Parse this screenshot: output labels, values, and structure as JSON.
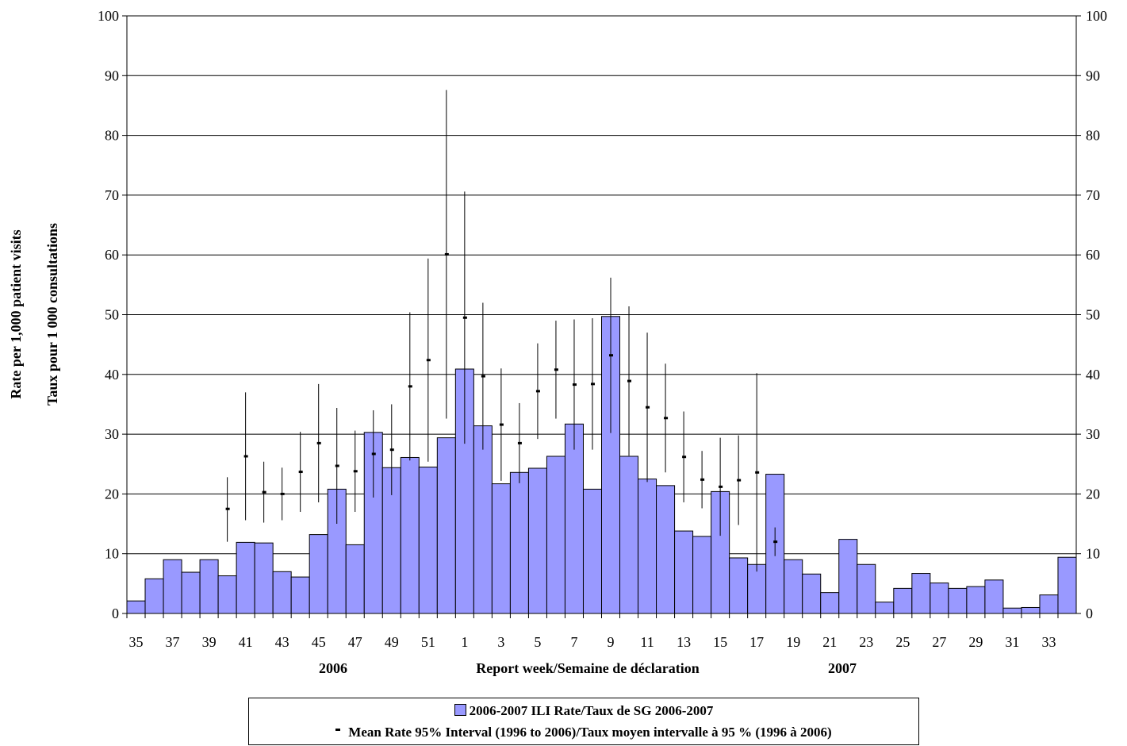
{
  "chart_data": {
    "type": "bar",
    "ylabel_en": "Rate per 1,000 patient visits",
    "ylabel_fr": "Taux pour 1 000 consultations",
    "xlabel": "Report week/Semaine de déclaration",
    "year_labels": [
      "2006",
      "2007"
    ],
    "ylim": [
      0,
      100
    ],
    "yticks": [
      "0",
      "10",
      "20",
      "30",
      "40",
      "50",
      "60",
      "70",
      "80",
      "90",
      "100"
    ],
    "grid": "horizontal",
    "legend_placement": "bottom",
    "colors": {
      "bar_fill": "#9999ff",
      "bar_edge": "#000000"
    },
    "categories": [
      35,
      36,
      37,
      38,
      39,
      40,
      41,
      42,
      43,
      44,
      45,
      46,
      47,
      48,
      49,
      50,
      51,
      52,
      1,
      2,
      3,
      4,
      5,
      6,
      7,
      8,
      9,
      10,
      11,
      12,
      13,
      14,
      15,
      16,
      17,
      18,
      19,
      20,
      21,
      22,
      23,
      24,
      25,
      26,
      27,
      28,
      29,
      30,
      31,
      32,
      33,
      34
    ],
    "tick_labels": [
      "35",
      "",
      "37",
      "",
      "39",
      "",
      "41",
      "",
      "43",
      "",
      "45",
      "",
      "47",
      "",
      "49",
      "",
      "51",
      "",
      "1",
      "",
      "3",
      "",
      "5",
      "",
      "7",
      "",
      "9",
      "",
      "11",
      "",
      "13",
      "",
      "15",
      "",
      "17",
      "",
      "19",
      "",
      "21",
      "",
      "23",
      "",
      "25",
      "",
      "27",
      "",
      "29",
      "",
      "31",
      "",
      "33",
      ""
    ],
    "series": [
      {
        "name": "2006-2007 ILI Rate/Taux de SG 2006-2007",
        "values": [
          2.1,
          5.8,
          9.0,
          6.9,
          9.0,
          6.3,
          11.9,
          11.8,
          7.0,
          6.1,
          13.2,
          20.8,
          11.5,
          30.3,
          24.4,
          26.1,
          24.5,
          29.4,
          40.9,
          31.4,
          21.7,
          23.6,
          24.3,
          26.3,
          31.7,
          20.8,
          49.7,
          26.3,
          22.5,
          21.4,
          13.8,
          12.9,
          20.4,
          9.3,
          8.2,
          23.3,
          9.0,
          6.6,
          3.5,
          12.4,
          8.2,
          1.9,
          4.2,
          6.7,
          5.1,
          4.2,
          4.5,
          5.6,
          0.9,
          1.0,
          3.1,
          9.4
        ]
      },
      {
        "name": "Mean Rate 95% Interval (1996 to 2006)/Taux moyen intervalle à 95 % (1996 à 2006)",
        "points": [
          {
            "week": 40,
            "mean": 17.5,
            "low": 12.0,
            "high": 22.8
          },
          {
            "week": 41,
            "mean": 26.3,
            "low": 15.6,
            "high": 37.0
          },
          {
            "week": 42,
            "mean": 20.3,
            "low": 15.2,
            "high": 25.4
          },
          {
            "week": 43,
            "mean": 20.0,
            "low": 15.6,
            "high": 24.4
          },
          {
            "week": 44,
            "mean": 23.7,
            "low": 17.0,
            "high": 30.4
          },
          {
            "week": 45,
            "mean": 28.5,
            "low": 18.6,
            "high": 38.4
          },
          {
            "week": 46,
            "mean": 24.7,
            "low": 15.0,
            "high": 34.4
          },
          {
            "week": 47,
            "mean": 23.8,
            "low": 17.0,
            "high": 30.6
          },
          {
            "week": 48,
            "mean": 26.7,
            "low": 19.4,
            "high": 34.0
          },
          {
            "week": 49,
            "mean": 27.4,
            "low": 19.8,
            "high": 35.0
          },
          {
            "week": 50,
            "mean": 38.0,
            "low": 25.6,
            "high": 50.4
          },
          {
            "week": 51,
            "mean": 42.4,
            "low": 25.4,
            "high": 59.4
          },
          {
            "week": 52,
            "mean": 60.1,
            "low": 32.6,
            "high": 87.6
          },
          {
            "week": 1,
            "mean": 49.5,
            "low": 28.4,
            "high": 70.6
          },
          {
            "week": 2,
            "mean": 39.7,
            "low": 27.4,
            "high": 52.0
          },
          {
            "week": 3,
            "mean": 31.6,
            "low": 22.2,
            "high": 41.0
          },
          {
            "week": 4,
            "mean": 28.5,
            "low": 21.8,
            "high": 35.2
          },
          {
            "week": 5,
            "mean": 37.2,
            "low": 29.2,
            "high": 45.2
          },
          {
            "week": 6,
            "mean": 40.8,
            "low": 32.6,
            "high": 49.0
          },
          {
            "week": 7,
            "mean": 38.3,
            "low": 27.4,
            "high": 49.2
          },
          {
            "week": 8,
            "mean": 38.4,
            "low": 27.4,
            "high": 49.4
          },
          {
            "week": 9,
            "mean": 43.2,
            "low": 30.2,
            "high": 56.2
          },
          {
            "week": 10,
            "mean": 38.9,
            "low": 26.4,
            "high": 51.4
          },
          {
            "week": 11,
            "mean": 34.5,
            "low": 22.0,
            "high": 47.0
          },
          {
            "week": 12,
            "mean": 32.7,
            "low": 23.6,
            "high": 41.8
          },
          {
            "week": 13,
            "mean": 26.2,
            "low": 18.6,
            "high": 33.8
          },
          {
            "week": 14,
            "mean": 22.4,
            "low": 17.6,
            "high": 27.2
          },
          {
            "week": 15,
            "mean": 21.2,
            "low": 13.0,
            "high": 29.4
          },
          {
            "week": 16,
            "mean": 22.3,
            "low": 14.8,
            "high": 29.8
          },
          {
            "week": 17,
            "mean": 23.6,
            "low": 7.0,
            "high": 40.2
          },
          {
            "week": 18,
            "mean": 12.0,
            "low": 9.6,
            "high": 14.4
          }
        ]
      }
    ]
  },
  "legend": {
    "bar_label": "2006-2007 ILI Rate/Taux de SG 2006-2007",
    "interval_label": "Mean Rate 95% Interval (1996 to 2006)/Taux moyen intervalle à 95 % (1996 à 2006)"
  }
}
